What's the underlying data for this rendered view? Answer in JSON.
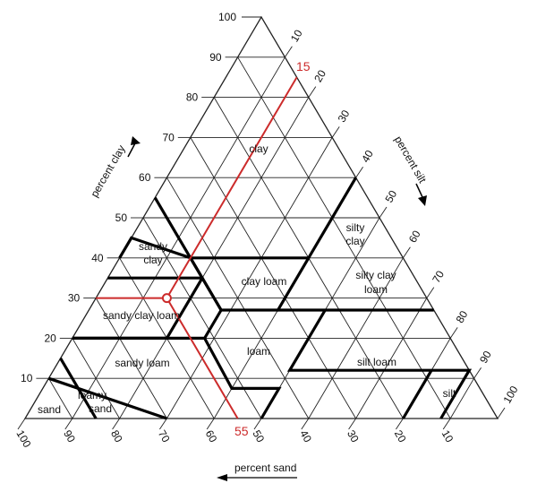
{
  "diagram": {
    "clay_ticks": [
      "100",
      "90",
      "80",
      "70",
      "60",
      "50",
      "40",
      "30",
      "20",
      "10"
    ],
    "silt_ticks": [
      "10",
      "20",
      "30",
      "40",
      "50",
      "60",
      "70",
      "80",
      "90",
      "100"
    ],
    "sand_ticks": [
      "100",
      "90",
      "80",
      "70",
      "60",
      "50",
      "40",
      "30",
      "20",
      "10"
    ],
    "axis_labels": {
      "clay": "percent clay",
      "silt": "percent silt",
      "sand": "percent sand"
    },
    "regions": [
      {
        "id": "clay",
        "lines": [
          "clay"
        ]
      },
      {
        "id": "silty-clay",
        "lines": [
          "silty",
          "clay"
        ]
      },
      {
        "id": "sandy-clay",
        "lines": [
          "sandy",
          "clay"
        ]
      },
      {
        "id": "clay-loam",
        "lines": [
          "clay loam"
        ]
      },
      {
        "id": "silty-clay-loam",
        "lines": [
          "silty clay",
          "loam"
        ]
      },
      {
        "id": "sandy-clay-loam",
        "lines": [
          "sandy clay loam"
        ]
      },
      {
        "id": "loam",
        "lines": [
          "loam"
        ]
      },
      {
        "id": "sandy-loam",
        "lines": [
          "sandy loam"
        ]
      },
      {
        "id": "silt-loam",
        "lines": [
          "silt loam"
        ]
      },
      {
        "id": "loamy-sand",
        "lines": [
          "loamy",
          "sand"
        ]
      },
      {
        "id": "sand",
        "lines": [
          "sand"
        ]
      },
      {
        "id": "silt",
        "lines": [
          "silt"
        ]
      }
    ],
    "example": {
      "silt_label": "15",
      "sand_label": "55",
      "clay": 30,
      "silt": 15,
      "sand": 55,
      "color": "#cc2b2b"
    },
    "colors": {
      "grid": "#222222",
      "boundary": "#000000",
      "marker": "#cc2b2b"
    }
  }
}
